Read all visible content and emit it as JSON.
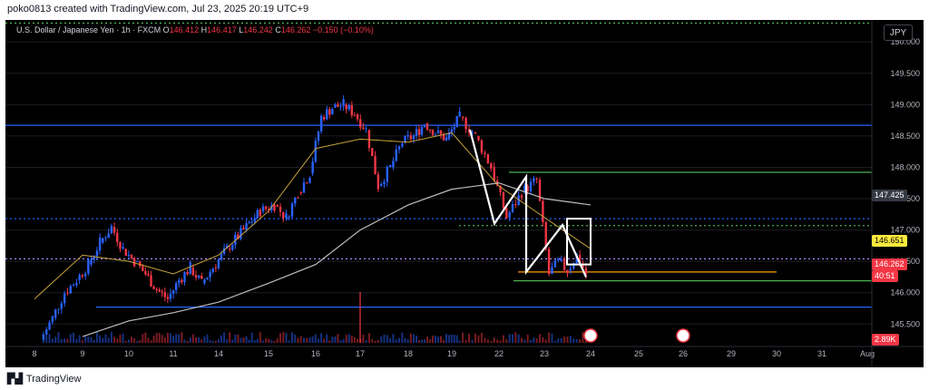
{
  "header": {
    "text": "poko0813 created with TradingView.com, Jul 23, 2025 20:19 UTC+9"
  },
  "footer": {
    "logo_text": "TradingView"
  },
  "legend": {
    "symbol": "U.S. Dollar / Japanese Yen · 1h · FXCM",
    "o_label": "O",
    "o": "146.412",
    "h_label": "H",
    "h": "146.417",
    "l_label": "L",
    "l": "146.242",
    "c_label": "C",
    "c": "146.262",
    "change": "−0.150 (−0.10%)"
  },
  "currency_button": "JPY",
  "price_tags": {
    "tag1": "147.425",
    "tag2": "146.651",
    "tag3": "146.262",
    "countdown": "40:51",
    "volume": "2.89K"
  },
  "colors": {
    "background": "#000000",
    "up": "#2962ff",
    "down": "#f23645",
    "ma_short": "#c8a43a",
    "ma_long": "#bdbdbd",
    "hline_blue": "#2962ff",
    "hline_green": "#4caf50",
    "hline_orange": "#ff9800",
    "pattern": "#ffffff",
    "axis_text": "#b2b5be"
  },
  "chart_data": {
    "type": "candlestick",
    "y_axis_ticks": [
      "145.500",
      "146.000",
      "146.500",
      "147.000",
      "147.500",
      "148.000",
      "148.500",
      "149.000",
      "149.500",
      "150.000"
    ],
    "ylim": [
      145.2,
      150.35
    ],
    "x_axis_labels": [
      "8",
      "9",
      "10",
      "11",
      "14",
      "15",
      "16",
      "17",
      "18",
      "19",
      "22",
      "23",
      "24",
      "25",
      "26",
      "29",
      "30",
      "31",
      "Aug"
    ],
    "price_path": [
      [
        "8",
        145.25
      ],
      [
        "8",
        145.6
      ],
      [
        "8",
        146.0
      ],
      [
        "8",
        146.2
      ],
      [
        "9",
        146.45
      ],
      [
        "9",
        146.8
      ],
      [
        "9",
        147.05
      ],
      [
        "9",
        146.7
      ],
      [
        "10",
        146.5
      ],
      [
        "10",
        146.3
      ],
      [
        "10",
        146.05
      ],
      [
        "10",
        145.9
      ],
      [
        "11",
        146.2
      ],
      [
        "11",
        146.4
      ],
      [
        "11",
        146.15
      ],
      [
        "11",
        146.4
      ],
      [
        "14",
        146.7
      ],
      [
        "14",
        147.0
      ],
      [
        "14",
        147.3
      ],
      [
        "15",
        147.4
      ],
      [
        "15",
        147.2
      ],
      [
        "15",
        147.6
      ],
      [
        "15",
        147.9
      ],
      [
        "16",
        148.8
      ],
      [
        "16",
        148.95
      ],
      [
        "16",
        149.0
      ],
      [
        "16",
        148.85
      ],
      [
        "17",
        148.6
      ],
      [
        "17",
        147.7
      ],
      [
        "17",
        148.0
      ],
      [
        "17",
        148.4
      ],
      [
        "18",
        148.5
      ],
      [
        "18",
        148.7
      ],
      [
        "18",
        148.55
      ],
      [
        "18",
        148.45
      ],
      [
        "19",
        148.8
      ],
      [
        "19",
        148.5
      ],
      [
        "19",
        148.0
      ],
      [
        "22",
        147.2
      ],
      [
        "22",
        147.6
      ],
      [
        "22",
        147.8
      ],
      [
        "23",
        146.3
      ],
      [
        "23",
        146.5
      ],
      [
        "23",
        146.35
      ],
      [
        "23",
        146.6
      ],
      [
        "23",
        146.3
      ]
    ],
    "horizontal_levels": [
      {
        "price": 148.67,
        "color": "blue",
        "style": "solid"
      },
      {
        "price": 147.18,
        "color": "blue",
        "style": "dotted"
      },
      {
        "price": 146.54,
        "color": "purple",
        "style": "dotted"
      },
      {
        "price": 145.77,
        "color": "blue",
        "style": "solid"
      },
      {
        "price": 147.92,
        "color": "green",
        "style": "solid"
      },
      {
        "price": 147.07,
        "color": "green",
        "style": "dotted"
      },
      {
        "price": 146.19,
        "color": "green",
        "style": "solid"
      },
      {
        "price": 146.33,
        "color": "orange",
        "style": "solid"
      },
      {
        "price": 150.3,
        "color": "green",
        "style": "dotted"
      }
    ],
    "pattern_points": [
      [
        "19",
        148.6
      ],
      [
        "22",
        147.1
      ],
      [
        "22",
        147.85
      ],
      [
        "23",
        146.33
      ],
      [
        "23",
        147.08
      ],
      [
        "24",
        146.25
      ]
    ],
    "pattern_box": {
      "from": "23",
      "to": "24",
      "top": 147.18,
      "bottom": 146.45
    },
    "ma_short_path": [
      [
        "8",
        145.9
      ],
      [
        "9",
        146.6
      ],
      [
        "10",
        146.5
      ],
      [
        "11",
        146.3
      ],
      [
        "14",
        146.6
      ],
      [
        "15",
        147.3
      ],
      [
        "16",
        148.3
      ],
      [
        "17",
        148.45
      ],
      [
        "18",
        148.4
      ],
      [
        "19",
        148.55
      ],
      [
        "22",
        147.7
      ],
      [
        "23",
        147.2
      ],
      [
        "24",
        146.7
      ]
    ],
    "ma_long_path": [
      [
        "9",
        145.3
      ],
      [
        "10",
        145.55
      ],
      [
        "11",
        145.68
      ],
      [
        "14",
        145.85
      ],
      [
        "15",
        146.15
      ],
      [
        "16",
        146.45
      ],
      [
        "17",
        147.0
      ],
      [
        "18",
        147.4
      ],
      [
        "19",
        147.65
      ],
      [
        "22",
        147.75
      ],
      [
        "23",
        147.5
      ],
      [
        "24",
        147.4
      ]
    ],
    "event_markers": [
      "24",
      "26"
    ]
  }
}
